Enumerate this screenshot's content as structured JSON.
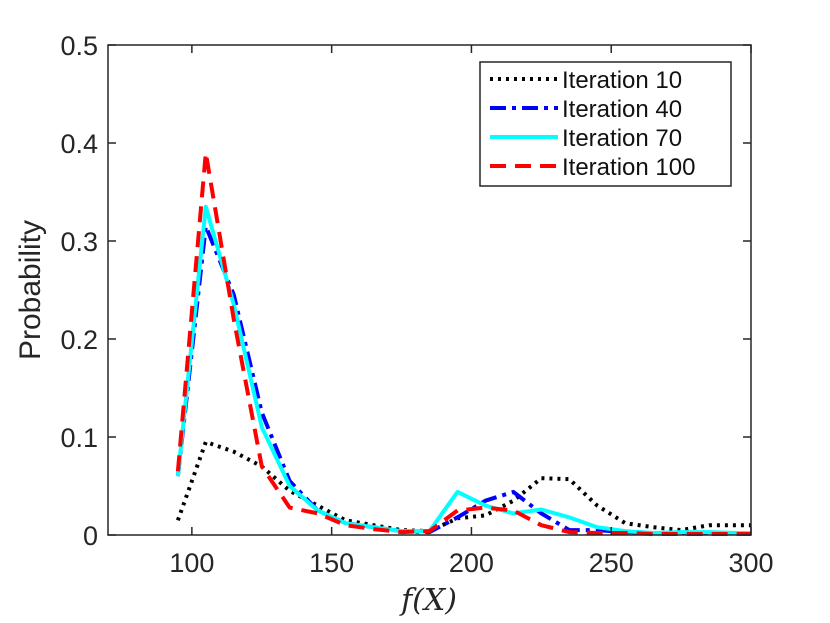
{
  "chart_data": {
    "type": "line",
    "xlabel": "f(X)",
    "ylabel": "Probability",
    "xlim": [
      70,
      300
    ],
    "ylim": [
      0,
      0.5
    ],
    "x_ticks": [
      100,
      150,
      200,
      250,
      300
    ],
    "y_ticks": [
      0,
      0.1,
      0.2,
      0.3,
      0.4,
      0.5
    ],
    "x_tick_labels": [
      "100",
      "150",
      "200",
      "250",
      "300"
    ],
    "y_tick_labels": [
      "0",
      "0.1",
      "0.2",
      "0.3",
      "0.4",
      "0.5"
    ],
    "grid": false,
    "legend_position": "top-right",
    "series": [
      {
        "name": "Iteration 10",
        "color": "#000000",
        "style": "dotted",
        "x": [
          95,
          105,
          115,
          125,
          135,
          145,
          155,
          165,
          175,
          185,
          195,
          205,
          215,
          225,
          235,
          245,
          255,
          265,
          275,
          285,
          295,
          300
        ],
        "y": [
          0.015,
          0.095,
          0.085,
          0.07,
          0.045,
          0.03,
          0.015,
          0.01,
          0.005,
          0.004,
          0.017,
          0.02,
          0.035,
          0.058,
          0.057,
          0.03,
          0.012,
          0.008,
          0.005,
          0.01,
          0.01,
          0.01
        ]
      },
      {
        "name": "Iteration 40",
        "color": "#0000ff",
        "style": "dashdot",
        "x": [
          95,
          105,
          115,
          125,
          135,
          145,
          155,
          165,
          175,
          185,
          195,
          205,
          215,
          225,
          235,
          245,
          255,
          265,
          275,
          285,
          295,
          300
        ],
        "y": [
          0.06,
          0.315,
          0.245,
          0.125,
          0.055,
          0.025,
          0.012,
          0.008,
          0.004,
          0.003,
          0.018,
          0.035,
          0.044,
          0.022,
          0.005,
          0.005,
          0.003,
          0.002,
          0.002,
          0.002,
          0.002,
          0.002
        ]
      },
      {
        "name": "Iteration 70",
        "color": "#00ffff",
        "style": "solid",
        "x": [
          95,
          105,
          115,
          125,
          135,
          145,
          155,
          165,
          175,
          185,
          195,
          205,
          215,
          225,
          235,
          245,
          255,
          265,
          275,
          285,
          295,
          300
        ],
        "y": [
          0.06,
          0.335,
          0.235,
          0.11,
          0.05,
          0.025,
          0.012,
          0.008,
          0.004,
          0.004,
          0.044,
          0.03,
          0.022,
          0.026,
          0.018,
          0.008,
          0.004,
          0.002,
          0.003,
          0.003,
          0.002,
          0.002
        ]
      },
      {
        "name": "Iteration 100",
        "color": "#ff0000",
        "style": "dashed",
        "x": [
          95,
          105,
          115,
          125,
          135,
          145,
          155,
          165,
          175,
          185,
          195,
          205,
          215,
          225,
          235,
          245,
          255,
          265,
          275,
          285,
          295,
          300
        ],
        "y": [
          0.065,
          0.39,
          0.22,
          0.07,
          0.028,
          0.022,
          0.01,
          0.006,
          0.003,
          0.004,
          0.025,
          0.028,
          0.025,
          0.01,
          0.003,
          0.002,
          0.002,
          0.001,
          0.001,
          0.001,
          0.001,
          0.001
        ]
      }
    ]
  }
}
